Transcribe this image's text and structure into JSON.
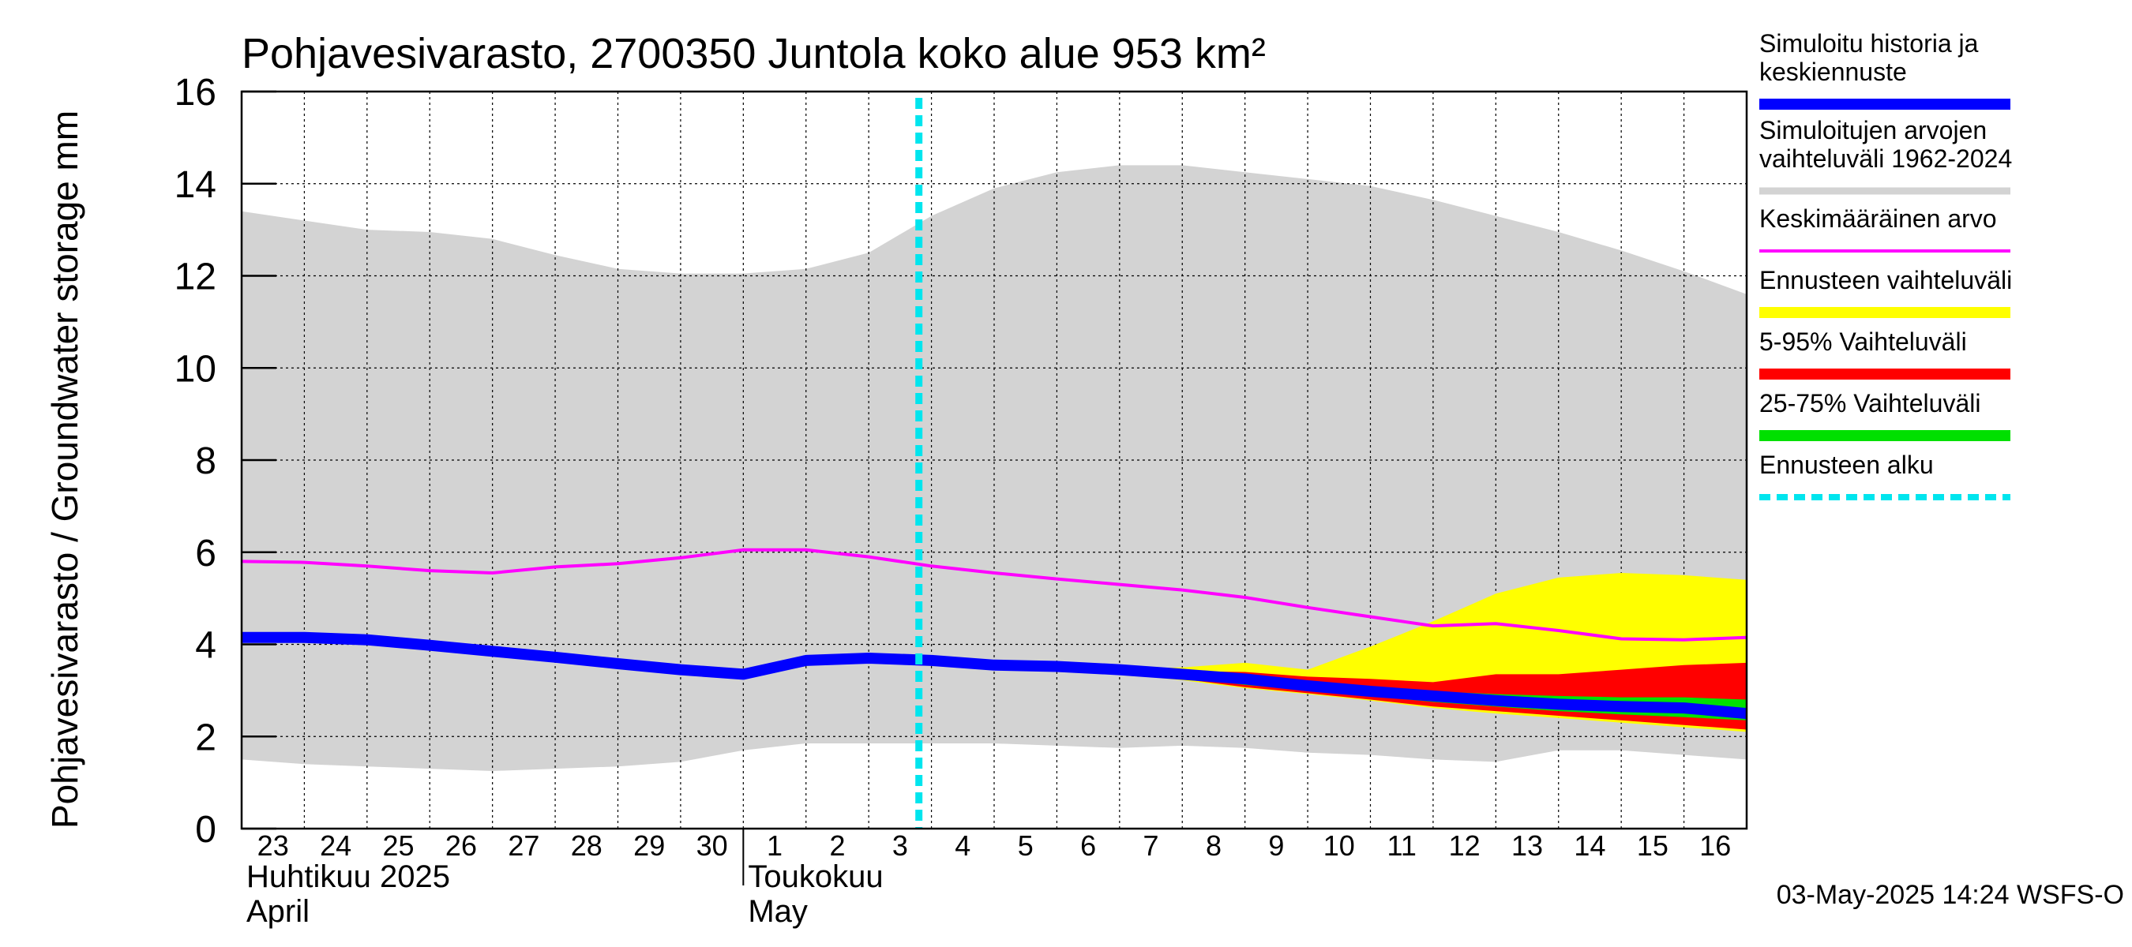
{
  "chart_data": {
    "type": "area",
    "title": "Pohjavesivarasto, 2700350 Juntola koko alue 953 km²",
    "ylabel": "Pohjavesivarasto / Groundwater storage   mm",
    "ylim": [
      0,
      16
    ],
    "yticks": [
      0,
      2,
      4,
      6,
      8,
      10,
      12,
      14,
      16
    ],
    "x_days": [
      "23",
      "24",
      "25",
      "26",
      "27",
      "28",
      "29",
      "30",
      "1",
      "2",
      "3",
      "4",
      "5",
      "6",
      "7",
      "8",
      "9",
      "10",
      "11",
      "12",
      "13",
      "14",
      "15",
      "16"
    ],
    "months": [
      {
        "fi": "Huhtikuu  2025",
        "en": "April"
      },
      {
        "fi": "Toukokuu",
        "en": "May"
      }
    ],
    "grid": true,
    "forecast_start_day": 10.8,
    "legend_position": "right",
    "legend": [
      {
        "label": "Simuloitu historia ja keskiennuste",
        "color": "#0000ff"
      },
      {
        "label": "Simuloitujen arvojen vaihteluväli 1962-2024",
        "color": "#d3d3d3"
      },
      {
        "label": "Keskimääräinen arvo",
        "color": "#ff00ff"
      },
      {
        "label": "Ennusteen vaihteluväli",
        "color": "#ffff00"
      },
      {
        "label": "5-95% Vaihteluväli",
        "color": "#ff0000"
      },
      {
        "label": "25-75% Vaihteluväli",
        "color": "#00e000"
      },
      {
        "label": "Ennusteen alku",
        "color": "#00e5ee"
      }
    ],
    "series": {
      "hist_range": {
        "x": [
          0,
          1,
          2,
          3,
          4,
          5,
          6,
          7,
          8,
          9,
          10,
          11,
          12,
          13,
          14,
          15,
          16,
          17,
          18,
          19,
          20,
          21,
          22,
          23,
          24
        ],
        "low": [
          1.5,
          1.4,
          1.35,
          1.3,
          1.25,
          1.3,
          1.35,
          1.45,
          1.7,
          1.85,
          1.85,
          1.85,
          1.85,
          1.8,
          1.75,
          1.8,
          1.75,
          1.65,
          1.6,
          1.5,
          1.45,
          1.7,
          1.7,
          1.6,
          1.5
        ],
        "high": [
          13.4,
          13.2,
          13.0,
          12.95,
          12.8,
          12.45,
          12.15,
          12.05,
          12.05,
          12.15,
          12.5,
          13.3,
          13.9,
          14.25,
          14.4,
          14.4,
          14.25,
          14.1,
          13.95,
          13.65,
          13.3,
          12.95,
          12.55,
          12.1,
          11.6
        ]
      },
      "mean": {
        "x": [
          0,
          1,
          2,
          3,
          4,
          5,
          6,
          7,
          8,
          9,
          10,
          11,
          12,
          13,
          14,
          15,
          16,
          17,
          18,
          19,
          20,
          21,
          22,
          23,
          24
        ],
        "y": [
          5.8,
          5.78,
          5.7,
          5.6,
          5.55,
          5.68,
          5.75,
          5.88,
          6.05,
          6.05,
          5.9,
          5.7,
          5.55,
          5.42,
          5.3,
          5.18,
          5.02,
          4.8,
          4.6,
          4.4,
          4.45,
          4.3,
          4.12,
          4.1,
          4.15
        ]
      },
      "median": {
        "x": [
          0,
          1,
          2,
          3,
          4,
          5,
          6,
          7,
          8,
          9,
          10,
          11,
          12,
          13,
          14,
          15,
          16,
          17,
          18,
          19,
          20,
          21,
          22,
          23,
          24
        ],
        "y": [
          4.15,
          4.15,
          4.1,
          3.98,
          3.85,
          3.72,
          3.58,
          3.45,
          3.35,
          3.65,
          3.7,
          3.65,
          3.55,
          3.52,
          3.45,
          3.35,
          3.25,
          3.1,
          2.98,
          2.88,
          2.78,
          2.7,
          2.65,
          2.62,
          2.5
        ]
      },
      "forecast_range": {
        "x": [
          14,
          15,
          16,
          17,
          18,
          19,
          20,
          21,
          22,
          23,
          24
        ],
        "low": [
          3.35,
          3.22,
          3.05,
          2.92,
          2.78,
          2.62,
          2.5,
          2.4,
          2.3,
          2.2,
          2.1
        ],
        "high": [
          3.48,
          3.5,
          3.6,
          3.45,
          3.95,
          4.5,
          5.1,
          5.45,
          5.55,
          5.5,
          5.4
        ]
      },
      "p5_95": {
        "x": [
          14,
          15,
          16,
          17,
          18,
          19,
          20,
          21,
          22,
          23,
          24
        ],
        "low": [
          3.38,
          3.25,
          3.07,
          2.94,
          2.8,
          2.65,
          2.55,
          2.45,
          2.35,
          2.25,
          2.15
        ],
        "high": [
          3.45,
          3.42,
          3.4,
          3.3,
          3.25,
          3.18,
          3.35,
          3.35,
          3.45,
          3.55,
          3.6
        ]
      },
      "p25_75": {
        "x": [
          14,
          15,
          16,
          17,
          18,
          19,
          20,
          21,
          22,
          23,
          24
        ],
        "low": [
          3.4,
          3.28,
          3.12,
          3.0,
          2.88,
          2.75,
          2.65,
          2.55,
          2.48,
          2.42,
          2.35
        ],
        "high": [
          3.42,
          3.35,
          3.3,
          3.2,
          3.08,
          2.98,
          2.92,
          2.88,
          2.85,
          2.85,
          2.8
        ]
      }
    }
  },
  "footer": {
    "timestamp": "03-May-2025 14:24 WSFS-O"
  }
}
